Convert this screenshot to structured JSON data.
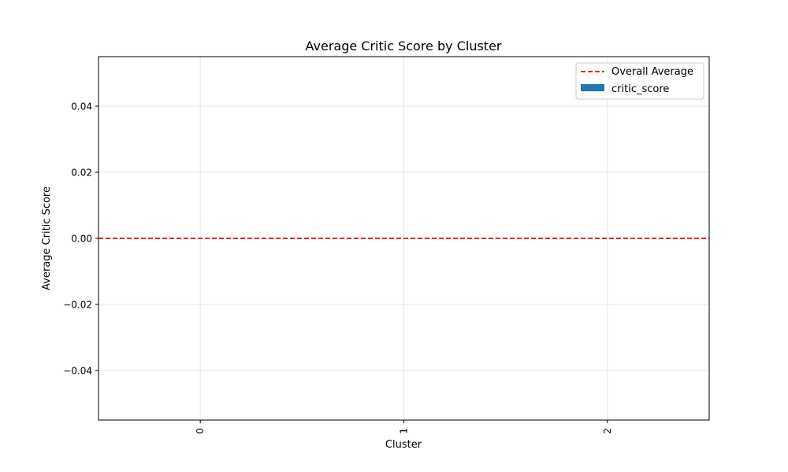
{
  "chart_data": {
    "type": "bar",
    "title": "Average Critic Score by Cluster",
    "xlabel": "Cluster",
    "ylabel": "Average Critic Score",
    "categories": [
      "0",
      "1",
      "2"
    ],
    "series": [
      {
        "name": "critic_score",
        "values": [
          0,
          0,
          0
        ],
        "color": "#1f77b4"
      }
    ],
    "reference_line": {
      "name": "Overall Average",
      "value": 0.0,
      "color": "#ff0000",
      "style": "dashed"
    },
    "ylim": [
      -0.055,
      0.055
    ],
    "yticks": [
      -0.04,
      -0.02,
      0.0,
      0.02,
      0.04
    ],
    "ytick_labels": [
      "−0.04",
      "−0.02",
      "0.00",
      "0.02",
      "0.04"
    ],
    "xtick_rotation": "vertical",
    "grid": true,
    "legend": {
      "position": "top-right",
      "entries": [
        "Overall Average",
        "critic_score"
      ]
    }
  }
}
